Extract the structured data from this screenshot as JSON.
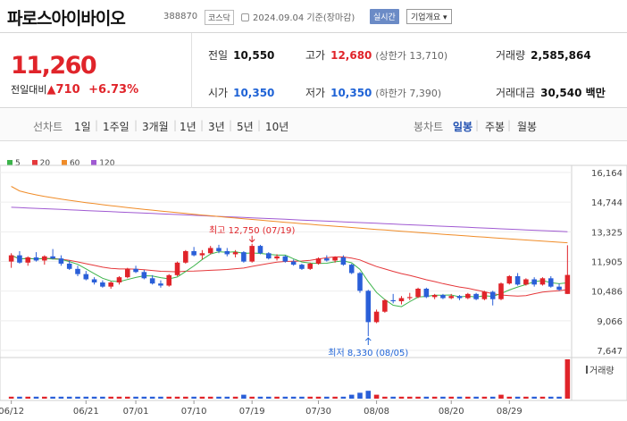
{
  "header": {
    "title": "파로스아이바이오",
    "code": "388870",
    "market": "코스닥",
    "date_basis": "2024.09.04 기준(장마감)",
    "realtime_label": "실시간",
    "company_info_label": "기업개요 ▾"
  },
  "quote": {
    "price": "11,260",
    "change_label": "전일대비",
    "change_arrow": "▲",
    "change_value": "710",
    "change_pct": "+6.73%",
    "prev_close_label": "전일",
    "prev_close": "10,550",
    "high_label": "고가",
    "high": "12,680",
    "upper_limit": "(상한가 13,710)",
    "volume_label": "거래량",
    "volume": "2,585,864",
    "open_label": "시가",
    "open": "10,350",
    "low_label": "저가",
    "low": "10,350",
    "lower_limit": "(하한가 7,390)",
    "amount_label": "거래대금",
    "amount": "30,540 백만"
  },
  "periods": {
    "line_chart_label": "선차트",
    "items": [
      "1일",
      "1주일",
      "3개월",
      "1년",
      "3년",
      "5년",
      "10년"
    ],
    "candle_label": "봉차트",
    "candle_items": [
      "일봉",
      "주봉",
      "월봉"
    ],
    "selected_candle": "일봉"
  },
  "colors": {
    "up": "#e0242a",
    "down": "#2a5fd8",
    "ma5": "#3cb44b",
    "ma20": "#e5383b",
    "ma60": "#f08c28",
    "ma120": "#a05ad2"
  },
  "chart_data": {
    "type": "candlestick",
    "legend": [
      {
        "name": "5",
        "color": "#3cb44b"
      },
      {
        "name": "20",
        "color": "#e5383b"
      },
      {
        "name": "60",
        "color": "#f08c28"
      },
      {
        "name": "120",
        "color": "#a05ad2"
      }
    ],
    "y_ticks": [
      16164,
      14744,
      13325,
      11905,
      10486,
      9066,
      7647
    ],
    "ylim": [
      7647,
      16164
    ],
    "x_labels": [
      "06/12",
      "06/21",
      "07/01",
      "07/10",
      "07/19",
      "07/30",
      "08/08",
      "08/20",
      "08/29"
    ],
    "annotations": [
      {
        "text": "최고 12,750 (07/19)",
        "value": 12750
      },
      {
        "text": "최저 8,330 (08/05)",
        "value": 8330
      }
    ],
    "volume_label": "거래량",
    "candles": [
      [
        11900,
        12300,
        11600,
        12200
      ],
      [
        12200,
        12400,
        11800,
        11850
      ],
      [
        11850,
        12150,
        11700,
        12100
      ],
      [
        12100,
        12350,
        11900,
        11950
      ],
      [
        11950,
        12200,
        11750,
        12150
      ],
      [
        12150,
        12500,
        12000,
        12050
      ],
      [
        12050,
        12200,
        11700,
        11800
      ],
      [
        11800,
        11950,
        11500,
        11550
      ],
      [
        11550,
        11700,
        11200,
        11300
      ],
      [
        11300,
        11450,
        11000,
        11050
      ],
      [
        11050,
        11150,
        10800,
        10900
      ],
      [
        10900,
        11000,
        10650,
        10700
      ],
      [
        10700,
        10950,
        10600,
        10900
      ],
      [
        10900,
        11200,
        10800,
        11150
      ],
      [
        11150,
        11600,
        11100,
        11550
      ],
      [
        11550,
        11700,
        11350,
        11400
      ],
      [
        11400,
        11500,
        11050,
        11100
      ],
      [
        11100,
        11250,
        10800,
        10850
      ],
      [
        10850,
        11000,
        10650,
        10750
      ],
      [
        10750,
        11300,
        10700,
        11250
      ],
      [
        11250,
        11900,
        11200,
        11850
      ],
      [
        11850,
        12450,
        11800,
        12400
      ],
      [
        12400,
        12600,
        12150,
        12200
      ],
      [
        12200,
        12450,
        12000,
        12300
      ],
      [
        12300,
        12650,
        12250,
        12550
      ],
      [
        12550,
        12700,
        12300,
        12400
      ],
      [
        12400,
        12550,
        12150,
        12250
      ],
      [
        12250,
        12450,
        12100,
        12350
      ],
      [
        12350,
        12400,
        11850,
        11900
      ],
      [
        11900,
        12750,
        11850,
        12650
      ],
      [
        12650,
        12700,
        12250,
        12300
      ],
      [
        12300,
        12350,
        12000,
        12050
      ],
      [
        12050,
        12250,
        11950,
        12150
      ],
      [
        12150,
        12200,
        11850,
        11900
      ],
      [
        11900,
        12000,
        11700,
        11750
      ],
      [
        11750,
        11800,
        11500,
        11550
      ],
      [
        11550,
        11850,
        11500,
        11800
      ],
      [
        11800,
        12100,
        11750,
        12050
      ],
      [
        12050,
        12200,
        11900,
        11950
      ],
      [
        11950,
        12150,
        11850,
        12100
      ],
      [
        12100,
        12200,
        11700,
        11750
      ],
      [
        11750,
        11800,
        11300,
        11350
      ],
      [
        11350,
        11400,
        10400,
        10500
      ],
      [
        10500,
        10550,
        8330,
        9000
      ],
      [
        9000,
        9600,
        8950,
        9500
      ],
      [
        9500,
        10100,
        9450,
        10050
      ],
      [
        10050,
        10350,
        9900,
        10000
      ],
      [
        10000,
        10250,
        9850,
        10150
      ],
      [
        10150,
        10400,
        10050,
        10200
      ],
      [
        10200,
        10650,
        10150,
        10600
      ],
      [
        10600,
        10650,
        10150,
        10200
      ],
      [
        10200,
        10350,
        10100,
        10300
      ],
      [
        10300,
        10350,
        10100,
        10150
      ],
      [
        10150,
        10350,
        10100,
        10250
      ],
      [
        10250,
        10300,
        10050,
        10150
      ],
      [
        10150,
        10400,
        10100,
        10350
      ],
      [
        10350,
        10400,
        10050,
        10100
      ],
      [
        10100,
        10500,
        10050,
        10450
      ],
      [
        10450,
        10500,
        9800,
        10100
      ],
      [
        10100,
        10900,
        10050,
        10850
      ],
      [
        10850,
        11250,
        10800,
        11200
      ],
      [
        11200,
        11350,
        10750,
        10800
      ],
      [
        10800,
        11100,
        10750,
        11050
      ],
      [
        11050,
        11150,
        10700,
        10800
      ],
      [
        10800,
        11150,
        10750,
        11100
      ],
      [
        11100,
        11200,
        10650,
        10700
      ],
      [
        10700,
        10850,
        10500,
        10550
      ],
      [
        10350,
        12680,
        10350,
        11260
      ]
    ],
    "volumes": [
      1,
      1,
      1,
      1,
      1,
      1,
      1,
      1,
      1,
      1,
      1,
      1,
      1,
      1,
      1,
      1,
      1,
      1,
      1,
      1,
      1,
      1,
      1,
      1,
      1,
      1,
      1,
      1,
      2,
      1,
      1,
      1,
      1,
      1,
      1,
      1,
      1,
      1,
      1,
      1,
      1,
      2,
      3,
      4,
      2,
      1,
      1,
      1,
      1,
      1,
      1,
      1,
      1,
      1,
      1,
      1,
      1,
      1,
      1,
      2,
      1,
      1,
      1,
      1,
      1,
      1,
      1,
      20
    ]
  }
}
